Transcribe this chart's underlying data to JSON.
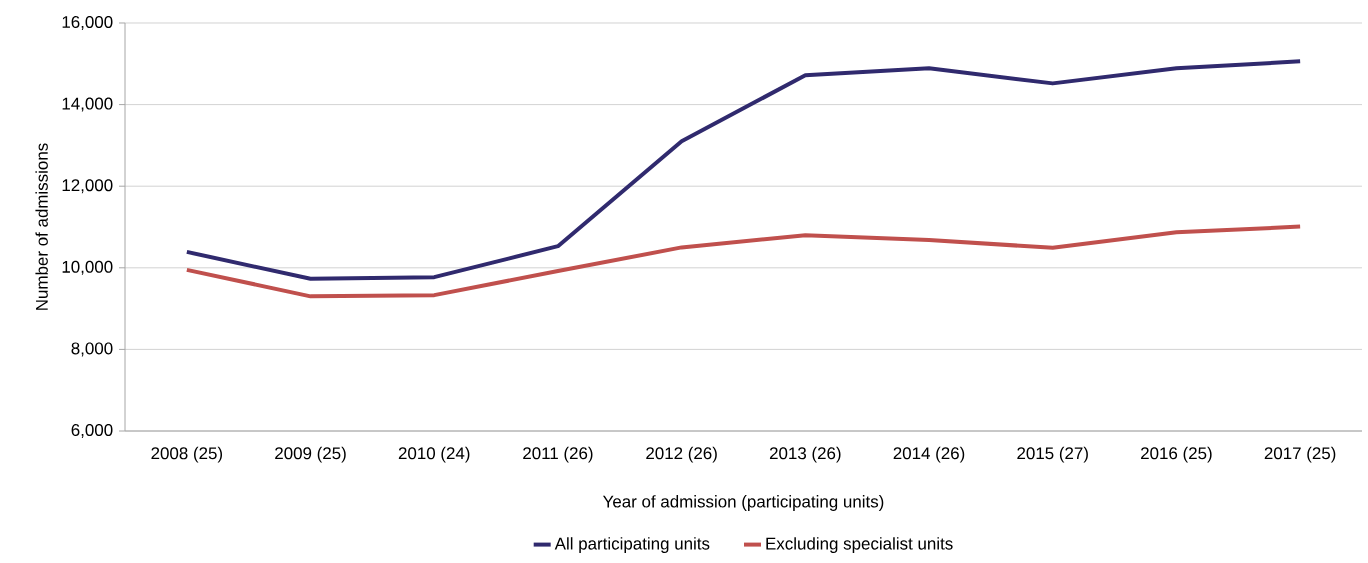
{
  "chart_data": {
    "type": "line",
    "xlabel": "Year of admission (participating units)",
    "ylabel": "Number of admissions",
    "categories": [
      "2008 (25)",
      "2009 (25)",
      "2010 (24)",
      "2011 (26)",
      "2012 (26)",
      "2013 (26)",
      "2014 (26)",
      "2015 (27)",
      "2016 (25)",
      "2017 (25)"
    ],
    "series": [
      {
        "name": "All participating units",
        "color": "#302a6e",
        "values": [
          10390,
          9730,
          9770,
          10530,
          13100,
          14720,
          14890,
          14520,
          14890,
          15060
        ]
      },
      {
        "name": "Excluding specialist units",
        "color": "#c0504d",
        "values": [
          9950,
          9300,
          9330,
          9920,
          10500,
          10800,
          10680,
          10490,
          10870,
          11010
        ]
      }
    ],
    "ylim": [
      6000,
      16000
    ],
    "yticks": [
      {
        "value": 6000,
        "label": "6,000"
      },
      {
        "value": 8000,
        "label": "8,000"
      },
      {
        "value": 10000,
        "label": "10,000"
      },
      {
        "value": 12000,
        "label": "12,000"
      },
      {
        "value": 14000,
        "label": "14,000"
      },
      {
        "value": 16000,
        "label": "16,000"
      }
    ],
    "grid": "y",
    "legend": "bottom"
  }
}
